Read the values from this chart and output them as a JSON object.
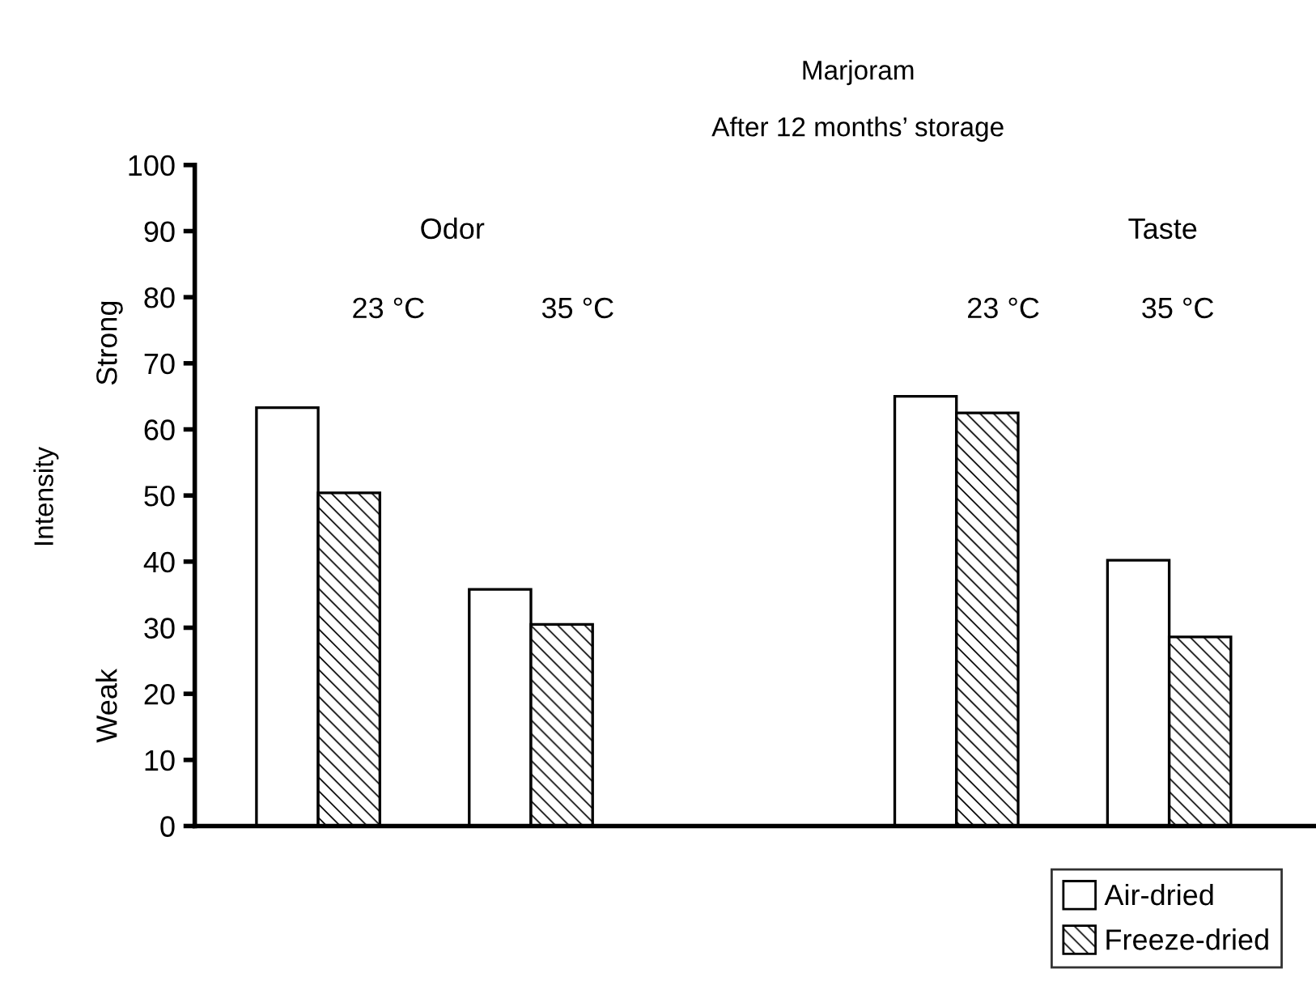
{
  "chart_data": {
    "type": "bar",
    "title": "Marjoram",
    "subtitle": "After 12 months’ storage",
    "ylabel": "Intensity",
    "categories": [
      null,
      null,
      null,
      null,
      null
    ],
    "series": [
      {
        "name": "Air-dried",
        "color": "#ffffff",
        "values": [
          63.3,
          35.8,
          null,
          65.0,
          40.2
        ]
      },
      {
        "name": "Freeze-dried",
        "color": "#000000",
        "values": [
          50.4,
          30.5,
          null,
          62.5,
          28.6
        ]
      }
    ],
    "ylim": [
      0,
      100
    ],
    "yticks": [
      0,
      10,
      20,
      30,
      40,
      50,
      60,
      70,
      80,
      90,
      100
    ],
    "grid": false,
    "legend": "bottom right",
    "annotations": [
      "Odor",
      "23 °C",
      "35 °C",
      "Taste",
      "23 °C",
      "35 °C",
      "Strong",
      "Weak"
    ]
  }
}
